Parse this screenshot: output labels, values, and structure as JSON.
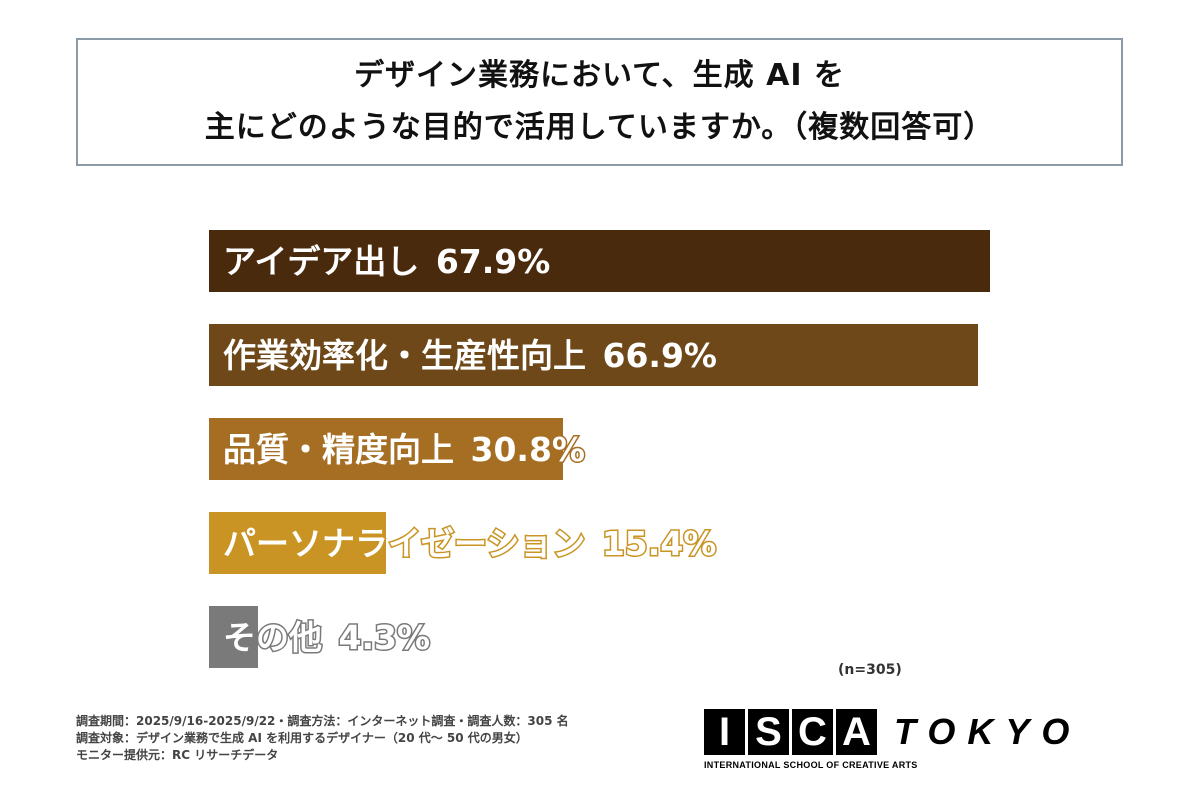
{
  "title": {
    "line1": "デザイン業務において、生成 AI を",
    "line2": "主にどのような目的で活用していますか。（複数回答可）"
  },
  "chart_data": {
    "type": "bar",
    "orientation": "horizontal",
    "categories": [
      "アイデア出し",
      "作業効率化・生産性向上",
      "品質・精度向上",
      "パーソナライゼーション",
      "その他"
    ],
    "values": [
      67.9,
      66.9,
      30.8,
      15.4,
      4.3
    ],
    "value_labels": [
      "67.9%",
      "66.9%",
      "30.8%",
      "15.4%",
      "4.3%"
    ],
    "colors": [
      "#4a2a0c",
      "#6e4818",
      "#a56e22",
      "#c99423",
      "#7a7a7a"
    ],
    "xlim": [
      0,
      67.9
    ],
    "grid": false,
    "legend": "none"
  },
  "sample_size": "(n=305)",
  "footnotes": [
    "調査期間：2025/9/16-2025/9/22・調査方法：インターネット調査・調査人数：305 名",
    "調査対象：デザイン業務で生成 AI を利用するデザイナー（20 代～ 50 代の男女）",
    "モニター提供元：RC リサーチデータ"
  ],
  "logo": {
    "letters": [
      "I",
      "S",
      "C",
      "A"
    ],
    "city": "TOKYO",
    "subtitle": "INTERNATIONAL SCHOOL OF CREATIVE ARTS"
  }
}
